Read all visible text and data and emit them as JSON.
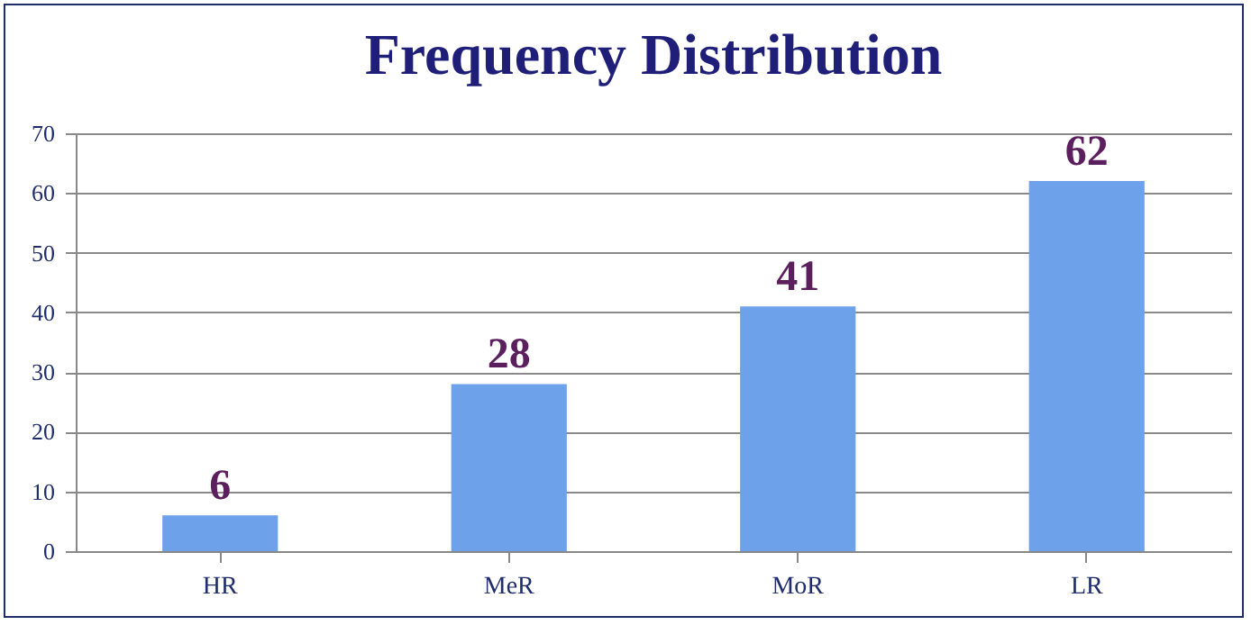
{
  "chart_data": {
    "type": "bar",
    "title": "Frequency Distribution",
    "categories": [
      "HR",
      "MeR",
      "MoR",
      "LR"
    ],
    "values": [
      6,
      28,
      41,
      62
    ],
    "color": "#6da1e9",
    "ylim": [
      0,
      70
    ],
    "yticks": [
      0,
      10,
      20,
      30,
      40,
      50,
      60,
      70
    ],
    "grid": "y",
    "data_labels": true
  }
}
